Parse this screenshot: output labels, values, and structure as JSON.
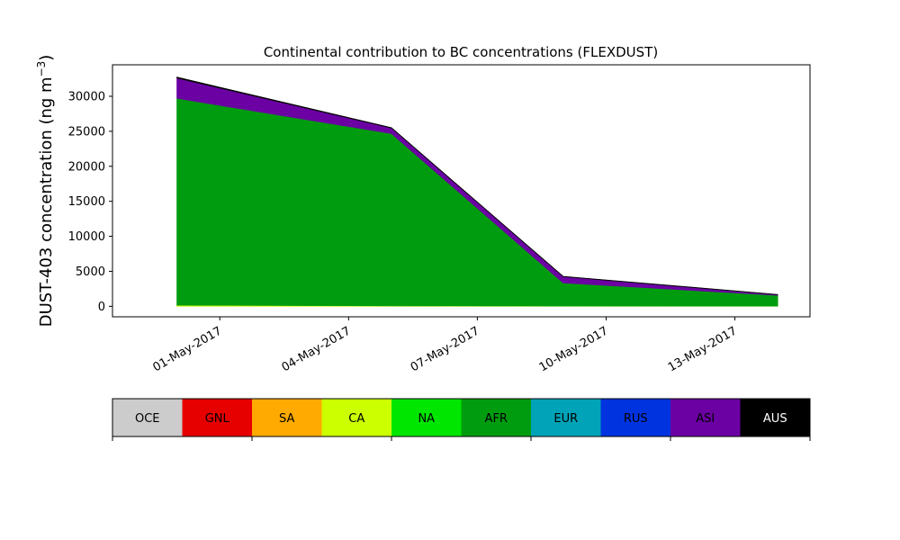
{
  "chart_data": {
    "type": "area",
    "title": "Continental contribution to BC concentrations (FLEXDUST)",
    "xlabel": "",
    "ylabel": "DUST-403 concentration (ng m",
    "ylabel_superscript": "−3",
    "ylabel_suffix": ")",
    "x": [
      "2017-04-30",
      "2017-05-05",
      "2017-05-09",
      "2017-05-14"
    ],
    "x_ticks": [
      {
        "date": "2017-05-01",
        "label": "01-May-2017"
      },
      {
        "date": "2017-05-04",
        "label": "04-May-2017"
      },
      {
        "date": "2017-05-07",
        "label": "07-May-2017"
      },
      {
        "date": "2017-05-10",
        "label": "10-May-2017"
      },
      {
        "date": "2017-05-13",
        "label": "13-May-2017"
      }
    ],
    "xlim": [
      "2017-04-28T12:00",
      "2017-05-14T18:00"
    ],
    "ylim": [
      -1500,
      34500
    ],
    "y_ticks": [
      0,
      5000,
      10000,
      15000,
      20000,
      25000,
      30000
    ],
    "stacked": true,
    "series": [
      {
        "name": "OCE",
        "color": "#cccccc",
        "values": [
          0,
          0,
          0,
          0
        ]
      },
      {
        "name": "GNL",
        "color": "#e60000",
        "values": [
          0,
          0,
          0,
          0
        ]
      },
      {
        "name": "SA",
        "color": "#ffaa00",
        "values": [
          0,
          0,
          0,
          0
        ]
      },
      {
        "name": "CA",
        "color": "#ccff00",
        "values": [
          150,
          60,
          30,
          15
        ]
      },
      {
        "name": "NA",
        "color": "#00e600",
        "values": [
          0,
          0,
          0,
          0
        ]
      },
      {
        "name": "AFR",
        "color": "#009c0f",
        "values": [
          29550,
          24600,
          3300,
          1550
        ]
      },
      {
        "name": "EUR",
        "color": "#00a3b8",
        "values": [
          0,
          0,
          0,
          0
        ]
      },
      {
        "name": "RUS",
        "color": "#0033e0",
        "values": [
          0,
          0,
          0,
          0
        ]
      },
      {
        "name": "ASI",
        "color": "#6b00a3",
        "values": [
          2900,
          800,
          900,
          100
        ]
      },
      {
        "name": "AUS",
        "color": "#000000",
        "values": [
          150,
          60,
          60,
          40
        ]
      }
    ],
    "grid": false,
    "legend_placement": "bottom"
  }
}
